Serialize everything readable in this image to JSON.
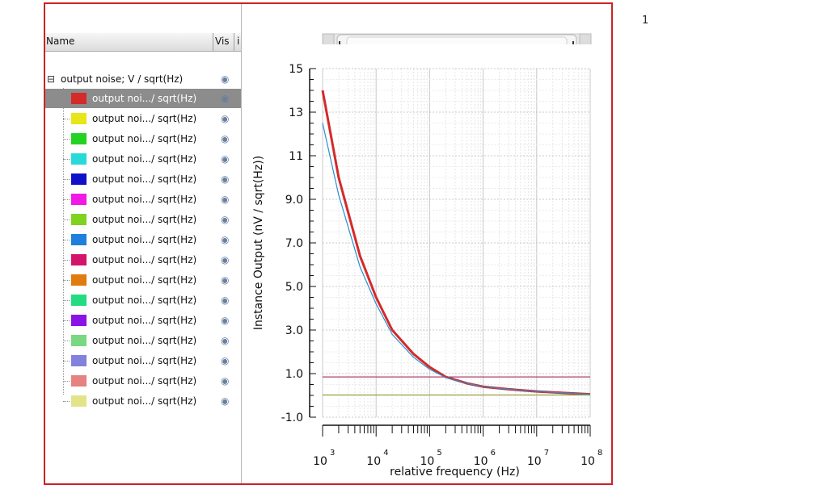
{
  "page_number": "1",
  "table_header": {
    "name": "Name",
    "vis": "Vis",
    "extra": "i"
  },
  "root": {
    "expander": "⊟",
    "label": "output noise; V / sqrt(Hz)",
    "eye_icon": "eye-icon"
  },
  "items": [
    {
      "label": "output noi.../ sqrt(Hz)",
      "color": "#d42a2a",
      "selected": true
    },
    {
      "label": "output noi.../ sqrt(Hz)",
      "color": "#e6e619",
      "selected": false
    },
    {
      "label": "output noi.../ sqrt(Hz)",
      "color": "#23d223",
      "selected": false
    },
    {
      "label": "output noi.../ sqrt(Hz)",
      "color": "#26dada",
      "selected": false
    },
    {
      "label": "output noi.../ sqrt(Hz)",
      "color": "#1010c8",
      "selected": false
    },
    {
      "label": "output noi.../ sqrt(Hz)",
      "color": "#f019e6",
      "selected": false
    },
    {
      "label": "output noi.../ sqrt(Hz)",
      "color": "#7fd21e",
      "selected": false
    },
    {
      "label": "output noi.../ sqrt(Hz)",
      "color": "#1f7fdc",
      "selected": false
    },
    {
      "label": "output noi.../ sqrt(Hz)",
      "color": "#d2146a",
      "selected": false
    },
    {
      "label": "output noi.../ sqrt(Hz)",
      "color": "#e07b0e",
      "selected": false
    },
    {
      "label": "output noi.../ sqrt(Hz)",
      "color": "#23dc82",
      "selected": false
    },
    {
      "label": "output noi.../ sqrt(Hz)",
      "color": "#8a14e6",
      "selected": false
    },
    {
      "label": "output noi.../ sqrt(Hz)",
      "color": "#7ad882",
      "selected": false
    },
    {
      "label": "output noi.../ sqrt(Hz)",
      "color": "#8282dc",
      "selected": false
    },
    {
      "label": "output noi.../ sqrt(Hz)",
      "color": "#e68282",
      "selected": false
    },
    {
      "label": "output noi.../ sqrt(Hz)",
      "color": "#e3e38a",
      "selected": false
    }
  ],
  "chart_data": {
    "type": "line",
    "ylabel": "Instance Output (nV / sqrt(Hz))",
    "xlabel": "relative frequency (Hz)",
    "xscale": "log",
    "xlim": [
      1000,
      100000000
    ],
    "ylim": [
      -1.0,
      15
    ],
    "yticks": [
      "15",
      "13",
      "11",
      "9.0",
      "7.0",
      "5.0",
      "3.0",
      "1.0",
      "-1.0"
    ],
    "ytick_values": [
      15,
      13,
      11,
      9,
      7,
      5,
      3,
      1,
      -1
    ],
    "xtick_exponents": [
      "3",
      "4",
      "5",
      "6",
      "7",
      "8"
    ],
    "xtick_values": [
      1000,
      10000,
      100000,
      1000000,
      10000000,
      100000000
    ],
    "grid": true,
    "series": [
      {
        "color": "#d42a2a",
        "x": [
          1000,
          2000,
          5000,
          10000,
          20000,
          50000,
          100000,
          200000,
          500000,
          1000000,
          3000000,
          10000000,
          100000000
        ],
        "y": [
          14.0,
          10.0,
          6.4,
          4.5,
          3.0,
          1.9,
          1.3,
          0.85,
          0.55,
          0.4,
          0.28,
          0.18,
          0.05
        ]
      },
      {
        "color": "#2a8fd0",
        "x": [
          1000,
          2000,
          5000,
          10000,
          20000,
          50000,
          100000,
          200000,
          500000,
          1000000,
          3000000,
          10000000,
          100000000
        ],
        "y": [
          12.5,
          9.2,
          5.9,
          4.2,
          2.8,
          1.75,
          1.2,
          0.82,
          0.55,
          0.4,
          0.28,
          0.18,
          0.05
        ]
      },
      {
        "color": "#b0406a",
        "x": [
          1000,
          100000000
        ],
        "y": [
          0.85,
          0.85
        ]
      },
      {
        "color": "#9aa040",
        "x": [
          1000,
          100000000
        ],
        "y": [
          0.02,
          0.02
        ]
      }
    ]
  },
  "scroller": {
    "left_arrow": "left-arrow-icon",
    "right_arrow": "right-arrow-icon"
  }
}
